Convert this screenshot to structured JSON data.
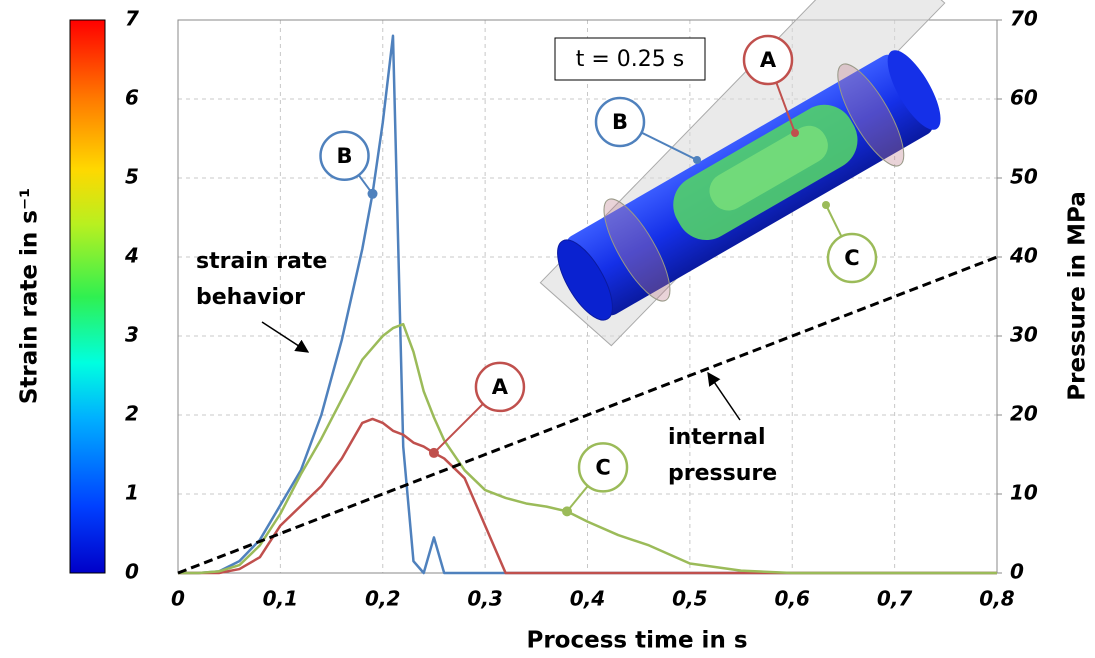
{
  "chart_data": {
    "type": "line",
    "x_label": "Process time in s",
    "y_label": "Strain rate in s⁻¹",
    "y2_label": "Pressure in MPa",
    "x": [
      0,
      0.02,
      0.04,
      0.06,
      0.08,
      0.1,
      0.12,
      0.14,
      0.16,
      0.18,
      0.19,
      0.2,
      0.21,
      0.22,
      0.23,
      0.24,
      0.25,
      0.26,
      0.28,
      0.3,
      0.32,
      0.34,
      0.36,
      0.38,
      0.4,
      0.43,
      0.46,
      0.5,
      0.55,
      0.6,
      0.7,
      0.8
    ],
    "series": [
      {
        "name": "B",
        "color": "#4f81bd",
        "values": [
          0,
          0,
          0.02,
          0.15,
          0.42,
          0.86,
          1.3,
          2.0,
          2.95,
          4.1,
          4.8,
          5.7,
          6.8,
          1.6,
          0.15,
          0,
          0.45,
          0,
          0,
          0,
          0,
          0,
          0,
          0,
          0,
          0,
          0,
          0,
          0,
          0,
          0,
          0
        ]
      },
      {
        "name": "A",
        "color": "#c0504d",
        "values": [
          0,
          0,
          0,
          0.05,
          0.2,
          0.6,
          0.85,
          1.1,
          1.45,
          1.9,
          1.95,
          1.9,
          1.8,
          1.75,
          1.65,
          1.6,
          1.52,
          1.45,
          1.2,
          0.6,
          0,
          0,
          0,
          0,
          0,
          0,
          0,
          0,
          0,
          0,
          0,
          0
        ]
      },
      {
        "name": "C",
        "color": "#9bbb59",
        "values": [
          0,
          0,
          0.02,
          0.1,
          0.35,
          0.75,
          1.25,
          1.7,
          2.2,
          2.7,
          2.85,
          3.0,
          3.1,
          3.15,
          2.8,
          2.3,
          1.97,
          1.68,
          1.3,
          1.05,
          0.95,
          0.88,
          0.84,
          0.78,
          0.65,
          0.48,
          0.35,
          0.12,
          0.03,
          0,
          0,
          0
        ]
      },
      {
        "color": "#000000",
        "axis": "y2",
        "dashed": true,
        "values": [
          0,
          1,
          2,
          3,
          4,
          5,
          6,
          7,
          8,
          9,
          9.5,
          10,
          10.5,
          11,
          11.5,
          12,
          12.5,
          13,
          14,
          15,
          16,
          17,
          18,
          19,
          20,
          21.5,
          23,
          25,
          27.5,
          30,
          35,
          40
        ]
      }
    ],
    "xlim": [
      0,
      0.8
    ],
    "xticks": [
      0,
      {
        "value": 0.1,
        "label": "0,1"
      },
      {
        "value": 0.2,
        "label": "0,2"
      },
      {
        "value": 0.3,
        "label": "0,3"
      },
      {
        "value": 0.4,
        "label": "0,4"
      },
      {
        "value": 0.5,
        "label": "0,5"
      },
      {
        "value": 0.6,
        "label": "0,6"
      },
      {
        "value": 0.7,
        "label": "0,7"
      },
      {
        "value": 0.8,
        "label": "0,8"
      }
    ],
    "ylim": [
      0,
      7
    ],
    "yticks": [
      0,
      1,
      2,
      3,
      4,
      5,
      6,
      7
    ],
    "y2lim": [
      0,
      70
    ],
    "y2ticks": [
      0,
      10,
      20,
      30,
      40,
      50,
      60,
      70
    ],
    "grid": true,
    "annotations": [
      [
        "strain rate",
        "behavior"
      ],
      [
        "internal",
        "pressure"
      ]
    ],
    "time_label": "t = 0.25 s"
  }
}
